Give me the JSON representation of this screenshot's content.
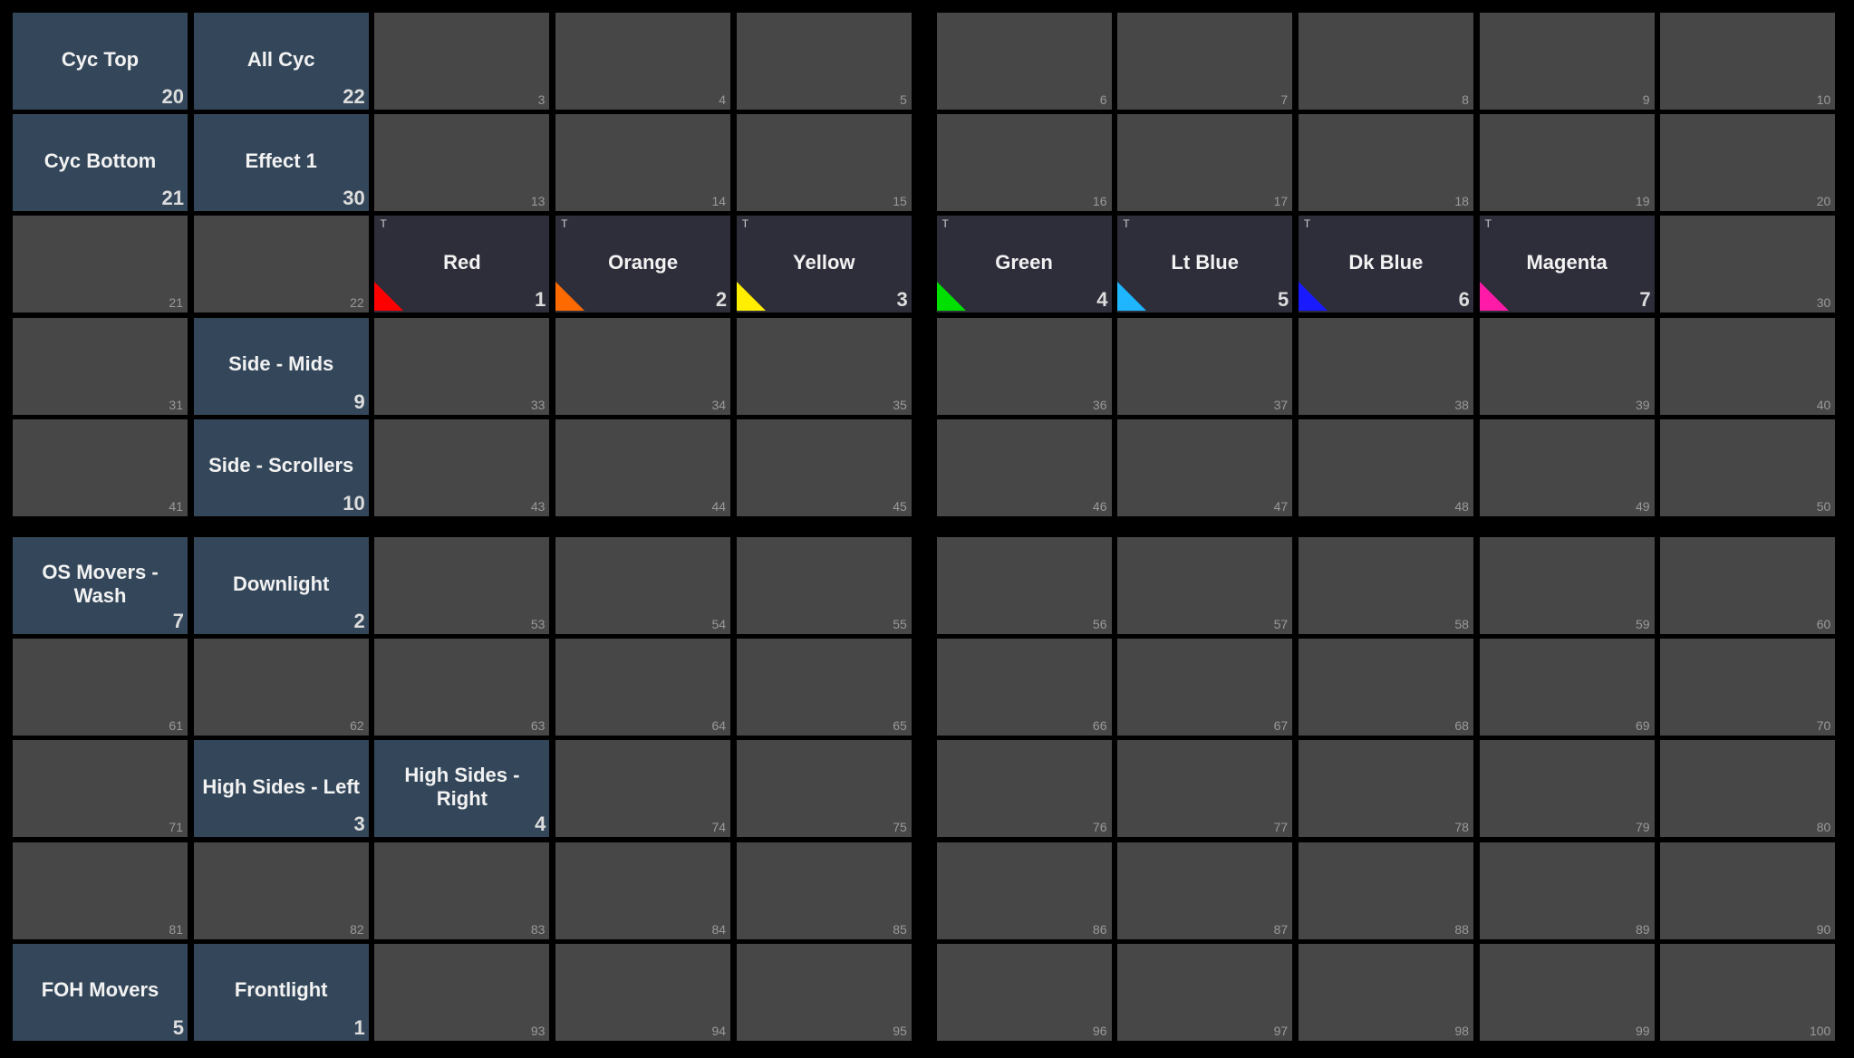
{
  "cells": [
    {
      "label": "Cyc Top",
      "number": 20
    },
    {
      "label": "All Cyc",
      "number": 22
    },
    {
      "number": 3
    },
    {
      "number": 4
    },
    {
      "number": 5
    },
    {
      "number": 6
    },
    {
      "number": 7
    },
    {
      "number": 8
    },
    {
      "number": 9
    },
    {
      "number": 10
    },
    {
      "label": "Cyc Bottom",
      "number": 21
    },
    {
      "label": "Effect 1",
      "number": 30
    },
    {
      "number": 13
    },
    {
      "number": 14
    },
    {
      "number": 15
    },
    {
      "number": 16
    },
    {
      "number": 17
    },
    {
      "number": 18
    },
    {
      "number": 19
    },
    {
      "number": 20
    },
    {
      "number": 21
    },
    {
      "number": 22
    },
    {
      "label": "Red",
      "number": 1,
      "flag": "T",
      "color": "#ff0000"
    },
    {
      "label": "Orange",
      "number": 2,
      "flag": "T",
      "color": "#ff6a00"
    },
    {
      "label": "Yellow",
      "number": 3,
      "flag": "T",
      "color": "#ffee00"
    },
    {
      "label": "Green",
      "number": 4,
      "flag": "T",
      "color": "#00e000"
    },
    {
      "label": "Lt Blue",
      "number": 5,
      "flag": "T",
      "color": "#1fb6ff"
    },
    {
      "label": "Dk Blue",
      "number": 6,
      "flag": "T",
      "color": "#1a1aff"
    },
    {
      "label": "Magenta",
      "number": 7,
      "flag": "T",
      "color": "#ff1aa8"
    },
    {
      "number": 30
    },
    {
      "number": 31
    },
    {
      "label": "Side - Mids",
      "number": 9
    },
    {
      "number": 33
    },
    {
      "number": 34
    },
    {
      "number": 35
    },
    {
      "number": 36
    },
    {
      "number": 37
    },
    {
      "number": 38
    },
    {
      "number": 39
    },
    {
      "number": 40
    },
    {
      "number": 41
    },
    {
      "label": "Side - Scrollers",
      "number": 10
    },
    {
      "number": 43
    },
    {
      "number": 44
    },
    {
      "number": 45
    },
    {
      "number": 46
    },
    {
      "number": 47
    },
    {
      "number": 48
    },
    {
      "number": 49
    },
    {
      "number": 50
    },
    {
      "label": "OS Movers - Wash",
      "number": 7
    },
    {
      "label": "Downlight",
      "number": 2
    },
    {
      "number": 53
    },
    {
      "number": 54
    },
    {
      "number": 55
    },
    {
      "number": 56
    },
    {
      "number": 57
    },
    {
      "number": 58
    },
    {
      "number": 59
    },
    {
      "number": 60
    },
    {
      "number": 61
    },
    {
      "number": 62
    },
    {
      "number": 63
    },
    {
      "number": 64
    },
    {
      "number": 65
    },
    {
      "number": 66
    },
    {
      "number": 67
    },
    {
      "number": 68
    },
    {
      "number": 69
    },
    {
      "number": 70
    },
    {
      "number": 71
    },
    {
      "label": "High Sides - Left",
      "number": 3
    },
    {
      "label": "High Sides - Right",
      "number": 4
    },
    {
      "number": 74
    },
    {
      "number": 75
    },
    {
      "number": 76
    },
    {
      "number": 77
    },
    {
      "number": 78
    },
    {
      "number": 79
    },
    {
      "number": 80
    },
    {
      "number": 81
    },
    {
      "number": 82
    },
    {
      "number": 83
    },
    {
      "number": 84
    },
    {
      "number": 85
    },
    {
      "number": 86
    },
    {
      "number": 87
    },
    {
      "number": 88
    },
    {
      "number": 89
    },
    {
      "number": 90
    },
    {
      "label": "FOH Movers",
      "number": 5
    },
    {
      "label": "Frontlight",
      "number": 1
    },
    {
      "number": 93
    },
    {
      "number": 94
    },
    {
      "number": 95
    },
    {
      "number": 96
    },
    {
      "number": 97
    },
    {
      "number": 98
    },
    {
      "number": 99
    },
    {
      "number": 100
    }
  ]
}
